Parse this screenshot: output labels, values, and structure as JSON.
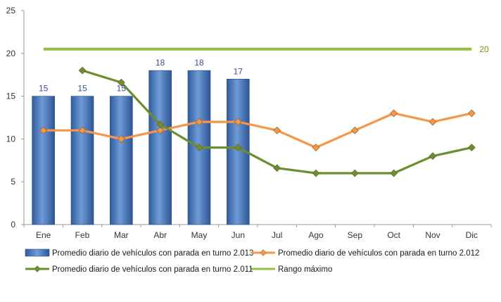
{
  "chart_data": {
    "type": "bar",
    "categories": [
      "Ene",
      "Feb",
      "Mar",
      "Abr",
      "May",
      "Jun",
      "Jul",
      "Ago",
      "Sep",
      "Oct",
      "Nov",
      "Dic"
    ],
    "ylim": [
      0,
      25
    ],
    "yticks": [
      0,
      5,
      10,
      15,
      20,
      25
    ],
    "grid": false,
    "legend_position": "bottom",
    "series": [
      {
        "name": "Promedio diario de vehículos con parada en turno 2.013",
        "type": "bar",
        "color": "#4a7ec4",
        "values": [
          15,
          15,
          15,
          18,
          18,
          17,
          null,
          null,
          null,
          null,
          null,
          null
        ],
        "data_labels": true
      },
      {
        "name": "Promedio diario de vehículos con parada en turno 2.012",
        "type": "line",
        "color": "#f79646",
        "values": [
          11,
          11,
          10,
          11,
          12,
          12,
          11,
          9,
          11,
          13,
          12,
          13
        ]
      },
      {
        "name": "Promedio diario de vehículos con parada en turno 2.011",
        "type": "line",
        "color": "#6a8f2e",
        "values": [
          null,
          18,
          16.6,
          11.7,
          9,
          9,
          6.6,
          6,
          6,
          6,
          8,
          9
        ]
      },
      {
        "name": "Rango máximo",
        "type": "line",
        "color": "#92c045",
        "values": [
          20.5,
          20.5,
          20.5,
          20.5,
          20.5,
          20.5,
          20.5,
          20.5,
          20.5,
          20.5,
          20.5,
          20.5
        ],
        "end_label": "20"
      }
    ]
  }
}
